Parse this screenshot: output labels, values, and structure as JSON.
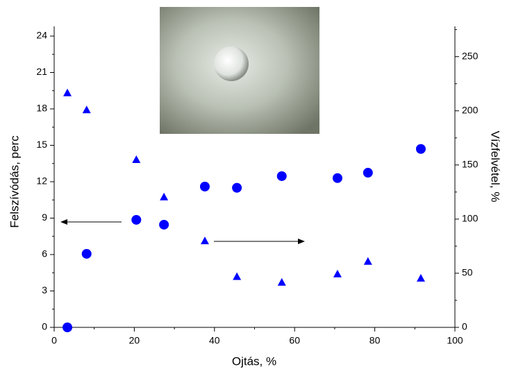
{
  "chart_data": {
    "type": "scatter",
    "x_label": "Ojtás, %",
    "y_label": "Felszívódás, perc",
    "y2_label": "Vízfelvétel, %",
    "xlim": [
      0,
      100
    ],
    "xticks": [
      0,
      20,
      40,
      60,
      80,
      100
    ],
    "ylim": [
      0,
      24.8
    ],
    "yticks": [
      0,
      3,
      6,
      9,
      12,
      15,
      18,
      21,
      24
    ],
    "y2lim": [
      0,
      278
    ],
    "y2ticks": [
      0,
      50,
      100,
      150,
      200,
      250
    ],
    "series": [
      {
        "marker": "circle",
        "color": "#0000ff",
        "x": [
          3.3,
          8.1,
          20.5,
          27.4,
          37.6,
          45.6,
          56.8,
          70.7,
          78.3,
          91.5
        ],
        "values": [
          0,
          6.06,
          8.86,
          8.46,
          11.6,
          11.5,
          12.46,
          12.3,
          12.74,
          14.7
        ]
      },
      {
        "marker": "triangle",
        "color": "#0000ff",
        "axis": "y2",
        "x": [
          3.3,
          8.1,
          20.5,
          27.4,
          37.6,
          45.6,
          56.8,
          70.7,
          78.3,
          91.5
        ],
        "values": [
          216.7,
          201,
          155,
          120.5,
          80,
          47,
          41.7,
          49.4,
          61,
          45.5
        ]
      }
    ]
  }
}
